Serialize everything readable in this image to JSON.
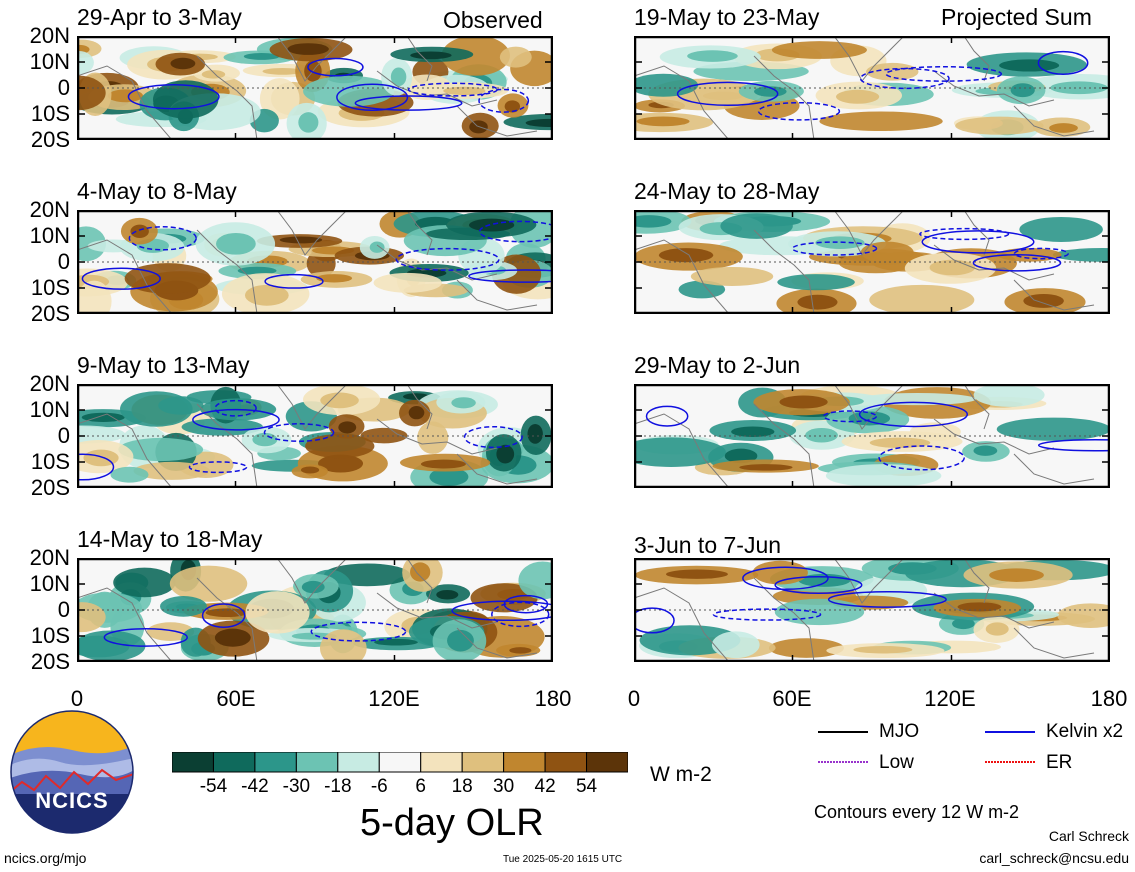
{
  "panels": {
    "left": [
      {
        "title": "29-Apr to 3-May",
        "corner": "Observed"
      },
      {
        "title": "4-May to 8-May",
        "corner": ""
      },
      {
        "title": "9-May to 13-May",
        "corner": ""
      },
      {
        "title": "14-May to 18-May",
        "corner": ""
      }
    ],
    "right": [
      {
        "title": "19-May to 23-May",
        "corner": "Projected Sum"
      },
      {
        "title": "24-May to 28-May",
        "corner": ""
      },
      {
        "title": "29-May to 2-Jun",
        "corner": ""
      },
      {
        "title": "3-Jun to 7-Jun",
        "corner": ""
      }
    ]
  },
  "axes": {
    "lat_labels": [
      "20N",
      "10N",
      "0",
      "10S",
      "20S"
    ],
    "lon_labels": [
      "0",
      "60E",
      "120E",
      "180"
    ]
  },
  "colorbar": {
    "labels": [
      "-54",
      "-42",
      "-30",
      "-18",
      "-6",
      "6",
      "18",
      "30",
      "42",
      "54"
    ],
    "colors": [
      "#0b3f33",
      "#0f6a5c",
      "#2c968a",
      "#6cc3b3",
      "#c7ebe3",
      "#f7f7f7",
      "#f3e3bd",
      "#dfc07e",
      "#c0862f",
      "#8f5312",
      "#5c3409"
    ],
    "units": "W m-2"
  },
  "title": "5-day OLR",
  "legend": [
    {
      "label": "MJO",
      "color": "#000000",
      "style": "solid"
    },
    {
      "label": "Kelvin x2",
      "color": "#1010e0",
      "style": "solid"
    },
    {
      "label": "Low",
      "color": "#9933cc",
      "style": "dotted"
    },
    {
      "label": "ER",
      "color": "#ee1111",
      "style": "dotted"
    }
  ],
  "contour_note": "Contours every 12 W m-2",
  "logo_text": "NCICS",
  "footer": {
    "left": "ncics.org/mjo",
    "center": "Tue 2025-05-20 1615 UTC",
    "author": "Carl Schreck",
    "email": "carl_schreck@ncsu.edu"
  }
}
